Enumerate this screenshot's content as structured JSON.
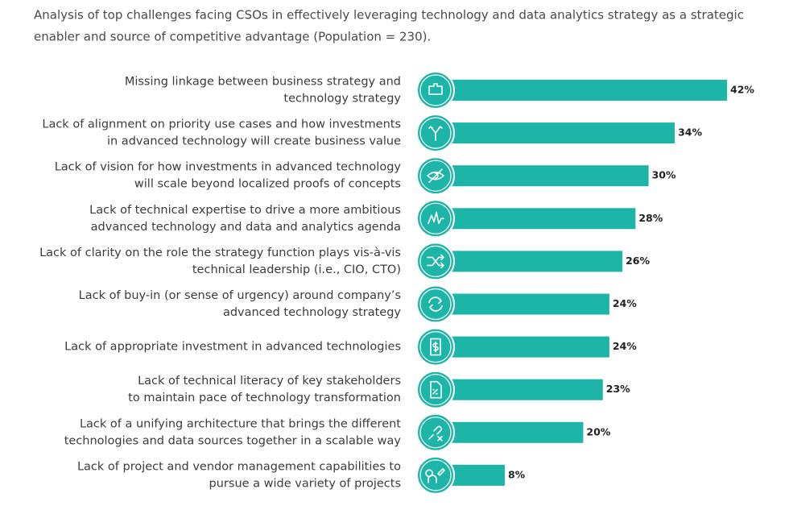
{
  "chart_data": {
    "type": "bar",
    "title": [
      "Analysis of top challenges facing CSOs in effectively leveraging technology and data analytics strategy as a strategic",
      "enabler and source of competitive advantage (Population = 230)."
    ],
    "categories": [
      [
        "Missing linkage between business strategy and",
        "technology strategy"
      ],
      [
        "Lack of alignment on priority use cases and how investments",
        "in advanced technology will create business value"
      ],
      [
        "Lack of vision for how investments in advanced technology",
        "will scale beyond localized proofs of concepts"
      ],
      [
        "Lack of technical expertise to drive a more ambitious",
        "advanced technology and data and analytics agenda"
      ],
      [
        "Lack of clarity on the role the strategy function plays vis-à-vis",
        "technical leadership (i.e., CIO, CTO)"
      ],
      [
        "Lack of buy-in (or sense of urgency) around company’s",
        "advanced technology strategy"
      ],
      [
        "Lack of appropriate investment in advanced technologies"
      ],
      [
        "Lack of technical literacy of key stakeholders",
        "to maintain pace of technology transformation"
      ],
      [
        "Lack of a unifying architecture that brings the different",
        "technologies and data sources together in a scalable way"
      ],
      [
        "Lack of project and vendor management capabilities to",
        "pursue a wide variety of projects"
      ]
    ],
    "values": [
      42,
      34,
      30,
      28,
      26,
      24,
      24,
      23,
      20,
      8
    ],
    "value_labels": [
      "42%",
      "34%",
      "30%",
      "28%",
      "26%",
      "24%",
      "24%",
      "23%",
      "20%",
      "8%"
    ],
    "color": "#1db5a8"
  }
}
